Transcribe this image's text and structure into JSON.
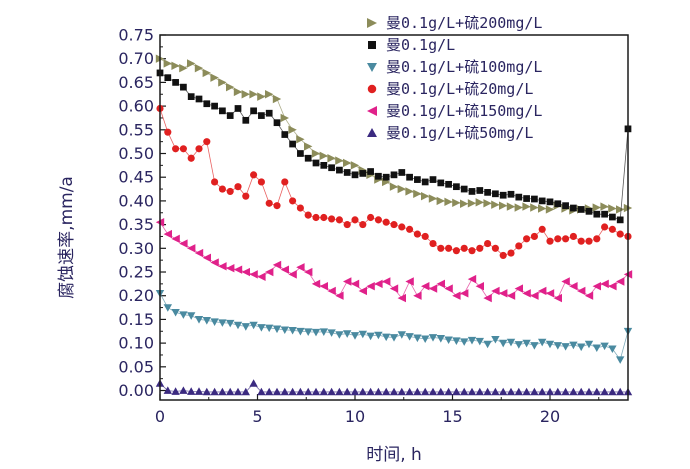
{
  "chart_data": {
    "type": "scatter",
    "title": "",
    "xlabel": "时间, h",
    "ylabel": "腐蚀速率,mm/a",
    "xlim": [
      0,
      24
    ],
    "ylim": [
      -0.02,
      0.75
    ],
    "xticks": [
      0,
      5,
      10,
      15,
      20
    ],
    "yticks": [
      0.0,
      0.05,
      0.1,
      0.15,
      0.2,
      0.25,
      0.3,
      0.35,
      0.4,
      0.45,
      0.5,
      0.55,
      0.6,
      0.65,
      0.7,
      0.75
    ],
    "grid": false,
    "legend_position": "top-right",
    "x": [
      0,
      0.4,
      0.8,
      1.2,
      1.6,
      2,
      2.4,
      2.8,
      3.2,
      3.6,
      4,
      4.4,
      4.8,
      5.2,
      5.6,
      6,
      6.4,
      6.8,
      7.2,
      7.6,
      8,
      8.4,
      8.8,
      9.2,
      9.6,
      10,
      10.4,
      10.8,
      11.2,
      11.6,
      12,
      12.4,
      12.8,
      13.2,
      13.6,
      14,
      14.4,
      14.8,
      15.2,
      15.6,
      16,
      16.4,
      16.8,
      17.2,
      17.6,
      18,
      18.4,
      18.8,
      19.2,
      19.6,
      20,
      20.4,
      20.8,
      21.2,
      21.6,
      22,
      22.4,
      22.8,
      23.2,
      23.6,
      24
    ],
    "series": [
      {
        "name": "曼0.1g/L+硫200mg/L",
        "color": "#8c8c5a",
        "marker": "triangle-right",
        "values": [
          0.7,
          0.69,
          0.685,
          0.68,
          0.69,
          0.68,
          0.67,
          0.66,
          0.65,
          0.64,
          0.63,
          0.625,
          0.625,
          0.62,
          0.625,
          0.615,
          0.575,
          0.55,
          0.53,
          0.515,
          0.5,
          0.495,
          0.49,
          0.485,
          0.48,
          0.475,
          0.465,
          0.455,
          0.445,
          0.44,
          0.43,
          0.425,
          0.42,
          0.415,
          0.41,
          0.405,
          0.4,
          0.398,
          0.396,
          0.394,
          0.395,
          0.397,
          0.395,
          0.392,
          0.39,
          0.388,
          0.386,
          0.388,
          0.386,
          0.384,
          0.382,
          0.39,
          0.384,
          0.38,
          0.382,
          0.384,
          0.386,
          0.388,
          0.384,
          0.382,
          0.385
        ]
      },
      {
        "name": "曼0.1g/L",
        "color": "#111111",
        "marker": "square",
        "values": [
          0.67,
          0.66,
          0.65,
          0.64,
          0.62,
          0.615,
          0.605,
          0.6,
          0.59,
          0.58,
          0.595,
          0.57,
          0.59,
          0.58,
          0.585,
          0.565,
          0.54,
          0.52,
          0.5,
          0.49,
          0.48,
          0.475,
          0.47,
          0.465,
          0.46,
          0.455,
          0.458,
          0.462,
          0.452,
          0.45,
          0.455,
          0.46,
          0.45,
          0.445,
          0.44,
          0.445,
          0.438,
          0.435,
          0.43,
          0.425,
          0.42,
          0.422,
          0.418,
          0.415,
          0.412,
          0.414,
          0.408,
          0.405,
          0.404,
          0.4,
          0.398,
          0.394,
          0.39,
          0.385,
          0.382,
          0.378,
          0.372,
          0.372,
          0.366,
          0.36,
          0.552
        ]
      },
      {
        "name": "曼0.1g/L+硫100mg/L",
        "color": "#4a8aa0",
        "marker": "triangle-down",
        "values": [
          0.205,
          0.175,
          0.165,
          0.16,
          0.158,
          0.15,
          0.148,
          0.145,
          0.143,
          0.142,
          0.138,
          0.135,
          0.138,
          0.133,
          0.132,
          0.13,
          0.128,
          0.127,
          0.125,
          0.124,
          0.123,
          0.124,
          0.122,
          0.118,
          0.12,
          0.116,
          0.119,
          0.115,
          0.117,
          0.113,
          0.112,
          0.118,
          0.114,
          0.111,
          0.109,
          0.112,
          0.11,
          0.107,
          0.105,
          0.103,
          0.106,
          0.104,
          0.098,
          0.108,
          0.1,
          0.102,
          0.097,
          0.1,
          0.095,
          0.102,
          0.098,
          0.095,
          0.093,
          0.096,
          0.092,
          0.098,
          0.09,
          0.094,
          0.088,
          0.065,
          0.125
        ]
      },
      {
        "name": "曼0.1g/L+硫20mg/L",
        "color": "#e02020",
        "marker": "circle",
        "values": [
          0.595,
          0.545,
          0.51,
          0.51,
          0.49,
          0.51,
          0.525,
          0.44,
          0.425,
          0.42,
          0.43,
          0.41,
          0.455,
          0.44,
          0.395,
          0.39,
          0.44,
          0.4,
          0.385,
          0.37,
          0.365,
          0.365,
          0.362,
          0.36,
          0.35,
          0.36,
          0.35,
          0.365,
          0.36,
          0.355,
          0.35,
          0.345,
          0.34,
          0.33,
          0.325,
          0.31,
          0.3,
          0.3,
          0.295,
          0.3,
          0.295,
          0.3,
          0.31,
          0.3,
          0.285,
          0.29,
          0.305,
          0.32,
          0.325,
          0.34,
          0.315,
          0.32,
          0.32,
          0.325,
          0.315,
          0.315,
          0.32,
          0.345,
          0.34,
          0.33,
          0.325
        ]
      },
      {
        "name": "曼0.1g/L+硫150mg/L",
        "color": "#e0218a",
        "marker": "triangle-left",
        "values": [
          0.355,
          0.33,
          0.32,
          0.31,
          0.3,
          0.29,
          0.28,
          0.27,
          0.262,
          0.258,
          0.255,
          0.25,
          0.245,
          0.24,
          0.25,
          0.265,
          0.255,
          0.245,
          0.26,
          0.25,
          0.225,
          0.22,
          0.21,
          0.2,
          0.23,
          0.225,
          0.21,
          0.22,
          0.225,
          0.23,
          0.215,
          0.195,
          0.23,
          0.2,
          0.22,
          0.215,
          0.225,
          0.215,
          0.2,
          0.205,
          0.235,
          0.22,
          0.195,
          0.21,
          0.205,
          0.2,
          0.215,
          0.205,
          0.2,
          0.21,
          0.205,
          0.195,
          0.23,
          0.22,
          0.21,
          0.2,
          0.22,
          0.225,
          0.22,
          0.23,
          0.245
        ]
      },
      {
        "name": "曼0.1g/L+硫50mg/L",
        "color": "#3b2a80",
        "marker": "triangle-up",
        "values": [
          0.015,
          0.0,
          -0.002,
          0.0,
          -0.002,
          -0.002,
          -0.003,
          -0.003,
          -0.003,
          -0.003,
          -0.003,
          -0.003,
          0.015,
          -0.003,
          -0.003,
          -0.003,
          -0.003,
          -0.003,
          -0.003,
          -0.003,
          -0.003,
          -0.003,
          -0.003,
          -0.003,
          -0.003,
          -0.003,
          -0.003,
          -0.003,
          -0.003,
          -0.003,
          -0.003,
          -0.003,
          -0.003,
          -0.003,
          -0.003,
          -0.003,
          -0.003,
          -0.003,
          -0.003,
          -0.003,
          -0.003,
          -0.003,
          -0.003,
          -0.003,
          -0.003,
          -0.003,
          -0.003,
          -0.003,
          -0.003,
          -0.003,
          -0.003,
          -0.003,
          -0.003,
          -0.003,
          -0.003,
          -0.003,
          -0.003,
          -0.003,
          -0.003,
          -0.003,
          -0.003
        ]
      }
    ]
  }
}
